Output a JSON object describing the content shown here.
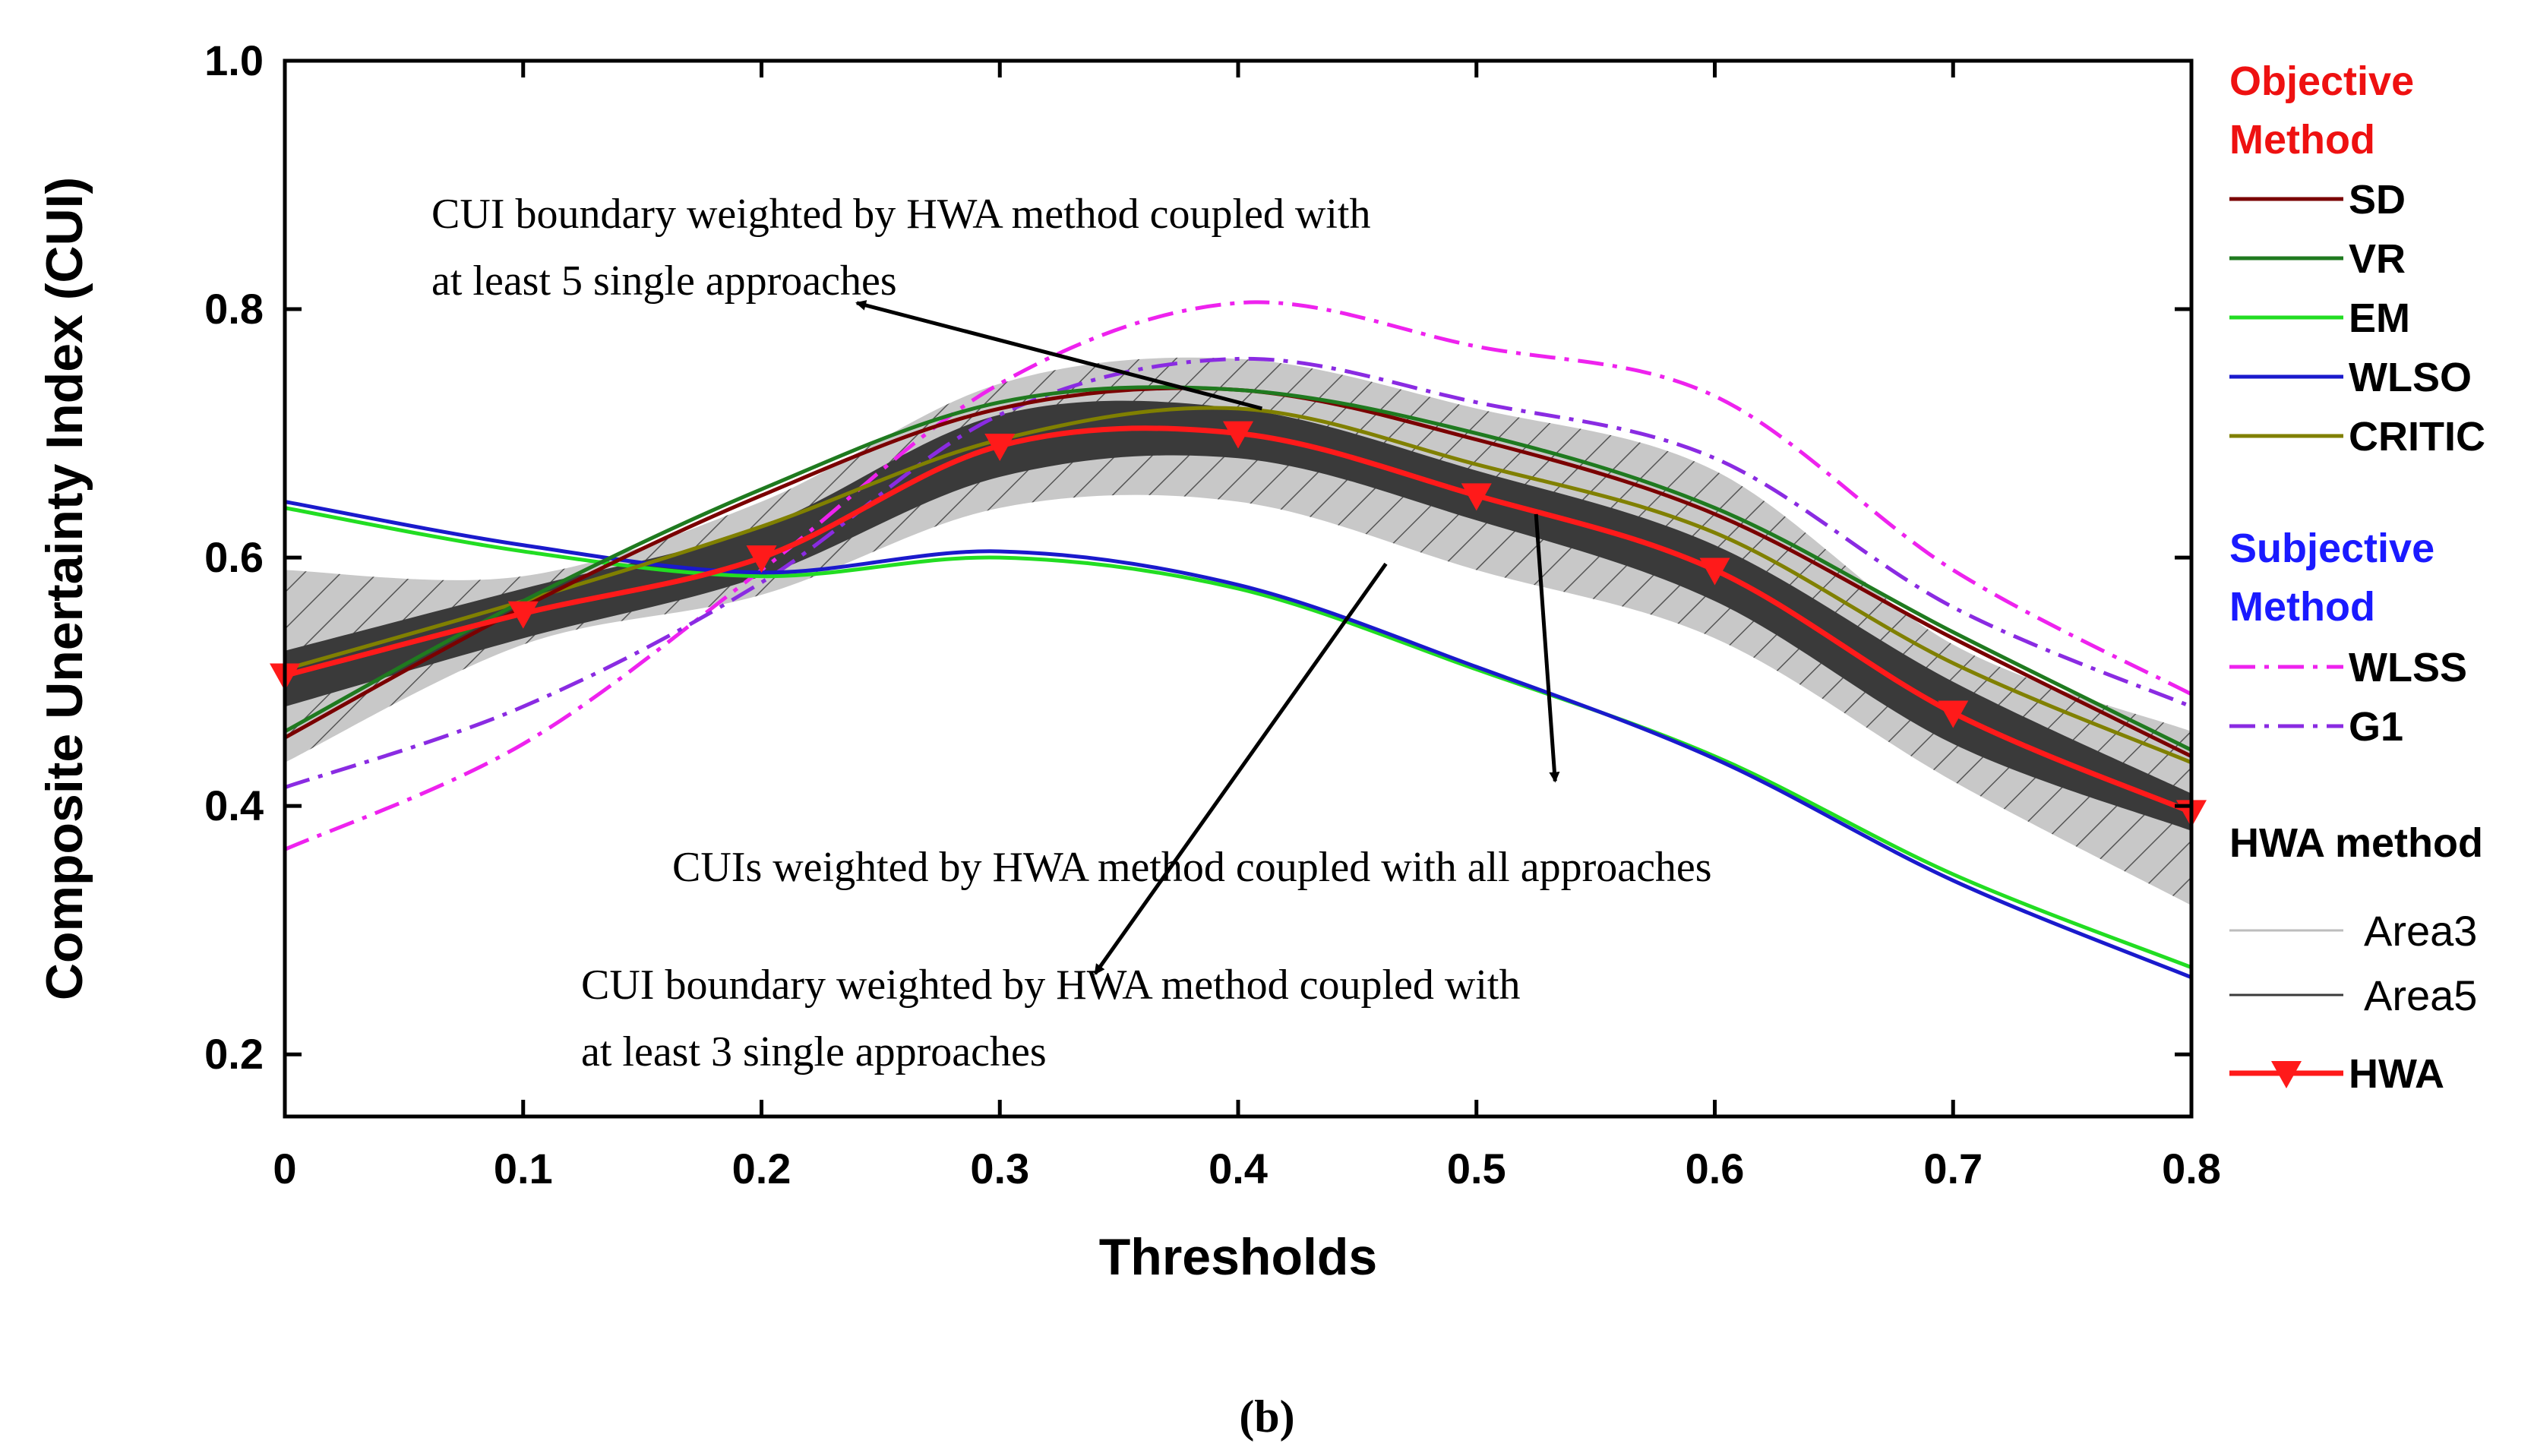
{
  "chart_data": {
    "type": "line",
    "xlabel": "Thresholds",
    "ylabel": "Composite Unertainty Index (CUI)",
    "xlim": [
      0,
      0.8
    ],
    "ylim": [
      0.15,
      1.0
    ],
    "x_ticks": [
      "0",
      "0.1",
      "0.2",
      "0.3",
      "0.4",
      "0.5",
      "0.6",
      "0.7",
      "0.8"
    ],
    "y_ticks": [
      "0.2",
      "0.4",
      "0.6",
      "0.8",
      "1.0"
    ],
    "x": [
      0,
      0.1,
      0.2,
      0.3,
      0.4,
      0.5,
      0.6,
      0.7,
      0.8
    ],
    "series": [
      {
        "name": "SD",
        "group": "objective",
        "color": "#7a0000",
        "dash": "solid",
        "values": [
          0.455,
          0.56,
          0.65,
          0.72,
          0.735,
          0.695,
          0.635,
          0.535,
          0.44
        ]
      },
      {
        "name": "VR",
        "group": "objective",
        "color": "#1f7a1f",
        "dash": "solid",
        "values": [
          0.46,
          0.565,
          0.655,
          0.725,
          0.735,
          0.7,
          0.64,
          0.54,
          0.445
        ]
      },
      {
        "name": "EM",
        "group": "objective",
        "color": "#22dd22",
        "dash": "solid",
        "values": [
          0.64,
          0.605,
          0.585,
          0.6,
          0.575,
          0.51,
          0.44,
          0.345,
          0.27
        ]
      },
      {
        "name": "WLSO",
        "group": "objective",
        "color": "#1a1acc",
        "dash": "solid",
        "values": [
          0.645,
          0.61,
          0.588,
          0.605,
          0.578,
          0.512,
          0.438,
          0.34,
          0.262
        ]
      },
      {
        "name": "CRITIC",
        "group": "objective",
        "color": "#808000",
        "dash": "solid",
        "values": [
          0.51,
          0.565,
          0.625,
          0.695,
          0.72,
          0.675,
          0.62,
          0.515,
          0.435
        ]
      },
      {
        "name": "WLSS",
        "group": "subjective",
        "color": "#ee22ee",
        "dash": "dashdot",
        "values": [
          0.365,
          0.45,
          0.59,
          0.74,
          0.805,
          0.77,
          0.73,
          0.59,
          0.49
        ]
      },
      {
        "name": "G1",
        "group": "subjective",
        "color": "#8a2be2",
        "dash": "dashdot",
        "values": [
          0.415,
          0.48,
          0.58,
          0.715,
          0.76,
          0.725,
          0.68,
          0.56,
          0.48
        ]
      },
      {
        "name": "HWA",
        "group": "hwa",
        "color": "#ff1a1a",
        "dash": "solid",
        "marker": "triangle-down",
        "values": [
          0.505,
          0.555,
          0.6,
          0.69,
          0.7,
          0.65,
          0.59,
          0.475,
          0.395
        ]
      }
    ],
    "bands": [
      {
        "name": "Area3",
        "color": "#c8c8c8",
        "hatched": true,
        "lower": [
          0.435,
          0.53,
          0.57,
          0.64,
          0.645,
          0.59,
          0.535,
          0.42,
          0.32
        ],
        "upper": [
          0.59,
          0.585,
          0.645,
          0.74,
          0.76,
          0.72,
          0.67,
          0.53,
          0.46
        ]
      },
      {
        "name": "Area5",
        "color": "#3a3a3a",
        "hatched": false,
        "lower": [
          0.48,
          0.535,
          0.585,
          0.665,
          0.68,
          0.63,
          0.565,
          0.45,
          0.38
        ],
        "upper": [
          0.525,
          0.575,
          0.625,
          0.715,
          0.72,
          0.67,
          0.61,
          0.5,
          0.41
        ]
      }
    ],
    "annotations": [
      {
        "id": "five",
        "lines": [
          "CUI boundary weighted by HWA  method coupled with",
          "at least 5 single approaches"
        ],
        "arrow_from": [
          0.41,
          0.72
        ],
        "arrow_to": [
          0.24,
          0.805
        ]
      },
      {
        "id": "all",
        "lines": [
          "CUIs weighted by HWA  method coupled with all approaches"
        ],
        "arrow_from": [
          0.525,
          0.635
        ],
        "arrow_to": [
          0.533,
          0.42
        ]
      },
      {
        "id": "three",
        "lines": [
          "CUI boundary weighted by HWA  method coupled with",
          "at least 3 single approaches"
        ],
        "arrow_from": [
          0.462,
          0.595
        ],
        "arrow_to": [
          0.34,
          0.265
        ]
      }
    ],
    "legend": {
      "position": "right",
      "objective_header": [
        "Objective",
        "Method"
      ],
      "objective_color": "#ee1111",
      "subjective_header": [
        "Subjective",
        "Method"
      ],
      "subjective_color": "#1a1aff",
      "hwa_header": "HWA method",
      "hwa_color": "#000000"
    },
    "caption": "(b)"
  }
}
